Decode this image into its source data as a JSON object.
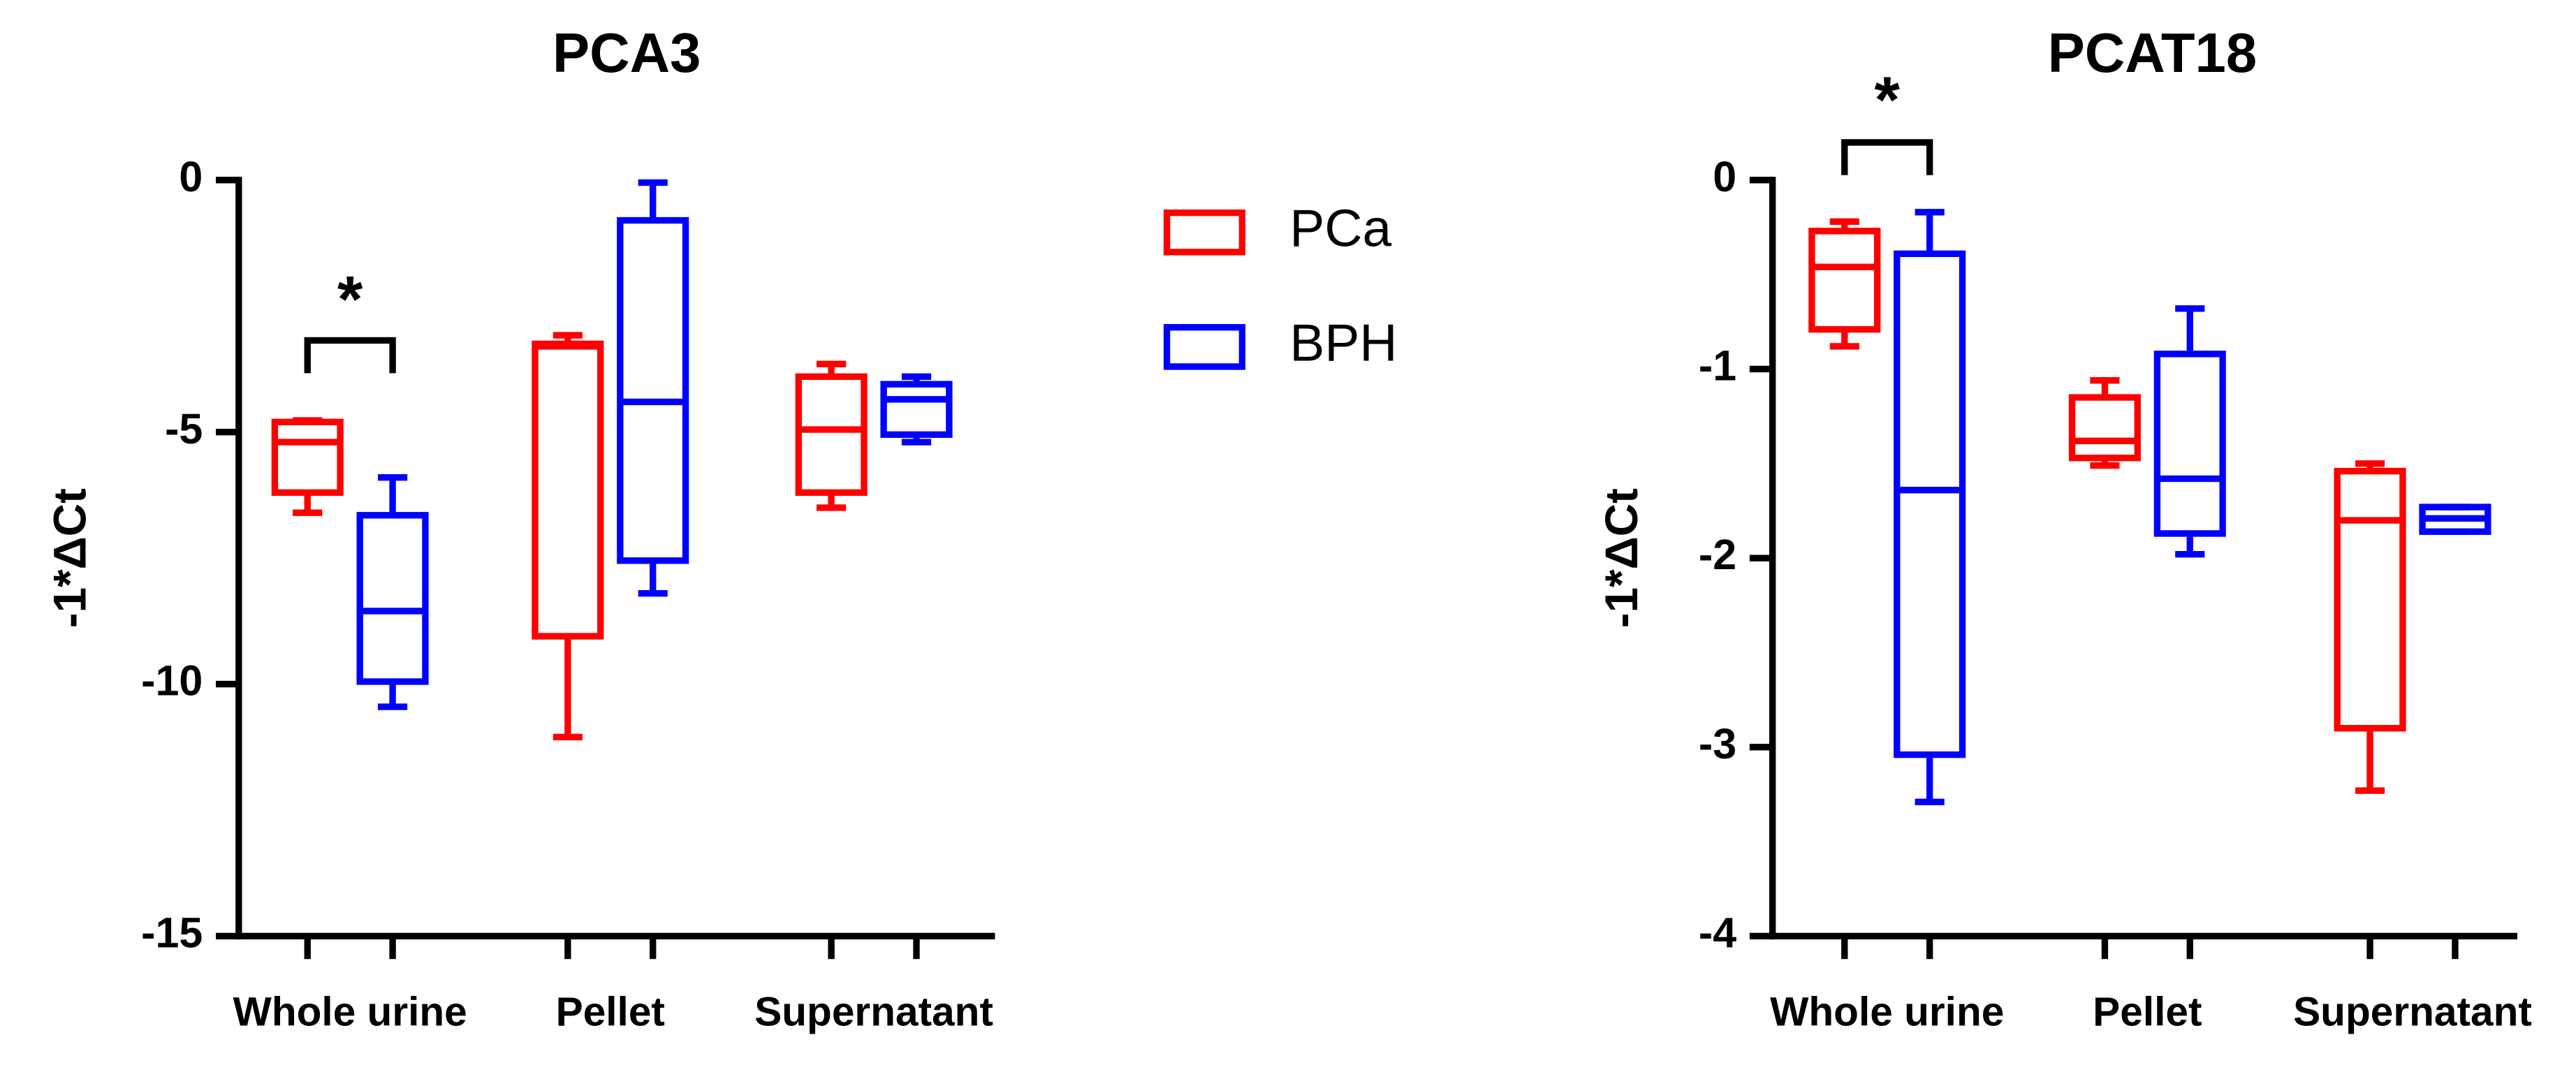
{
  "chart_data": [
    {
      "type": "box",
      "title": "PCA3",
      "y_label": "-1*ΔCt",
      "categories": [
        "Whole urine",
        "Pellet",
        "Supernatant"
      ],
      "ylim": [
        -15,
        0
      ],
      "yticks": [
        0,
        -5,
        -10,
        -15
      ],
      "legend": true,
      "annotations": [
        {
          "text": "*",
          "category": 0
        }
      ],
      "series": [
        {
          "name": "PCa",
          "color": "#ff0000",
          "values": [
            {
              "min": -6.6,
              "q1": -6.2,
              "median": -5.2,
              "q3": -4.8,
              "max": -4.77
            },
            {
              "min": -11.05,
              "q1": -9.05,
              "median": -3.3,
              "q3": -3.25,
              "max": -3.08
            },
            {
              "min": -6.5,
              "q1": -6.2,
              "median": -4.95,
              "q3": -3.9,
              "max": -3.65
            }
          ]
        },
        {
          "name": "BPH",
          "color": "#0000ff",
          "values": [
            {
              "min": -10.45,
              "q1": -9.95,
              "median": -8.55,
              "q3": -6.65,
              "max": -5.9
            },
            {
              "min": -8.2,
              "q1": -7.55,
              "median": -4.4,
              "q3": -0.8,
              "max": -0.05
            },
            {
              "min": -5.2,
              "q1": -5.05,
              "median": -4.35,
              "q3": -4.05,
              "max": -3.9
            }
          ]
        }
      ]
    },
    {
      "type": "box",
      "title": "PCAT18",
      "y_label": "-1*ΔCt",
      "categories": [
        "Whole urine",
        "Pellet",
        "Supernatant"
      ],
      "ylim": [
        -4,
        0
      ],
      "yticks": [
        0,
        -1,
        -2,
        -3,
        -4
      ],
      "annotations": [
        {
          "text": "*",
          "category": 0
        }
      ],
      "series": [
        {
          "color": "#ff0000",
          "values": [
            {
              "min": -0.88,
              "q1": -0.79,
              "median": -0.46,
              "q3": -0.27,
              "max": -0.22
            },
            {
              "min": -1.51,
              "q1": -1.47,
              "median": -1.38,
              "q3": -1.15,
              "max": -1.06
            },
            {
              "min": -3.23,
              "q1": -2.9,
              "median": -1.8,
              "q3": -1.54,
              "max": -1.5
            }
          ]
        },
        {
          "color": "#0000ff",
          "values": [
            {
              "min": -3.29,
              "q1": -3.04,
              "median": -1.64,
              "q3": -0.39,
              "max": -0.17
            },
            {
              "min": -1.98,
              "q1": -1.87,
              "median": -1.58,
              "q3": -0.92,
              "max": -0.68
            },
            {
              "min": -1.86,
              "q1": -1.86,
              "median": -1.79,
              "q3": -1.73,
              "max": -1.73
            }
          ]
        }
      ]
    }
  ]
}
